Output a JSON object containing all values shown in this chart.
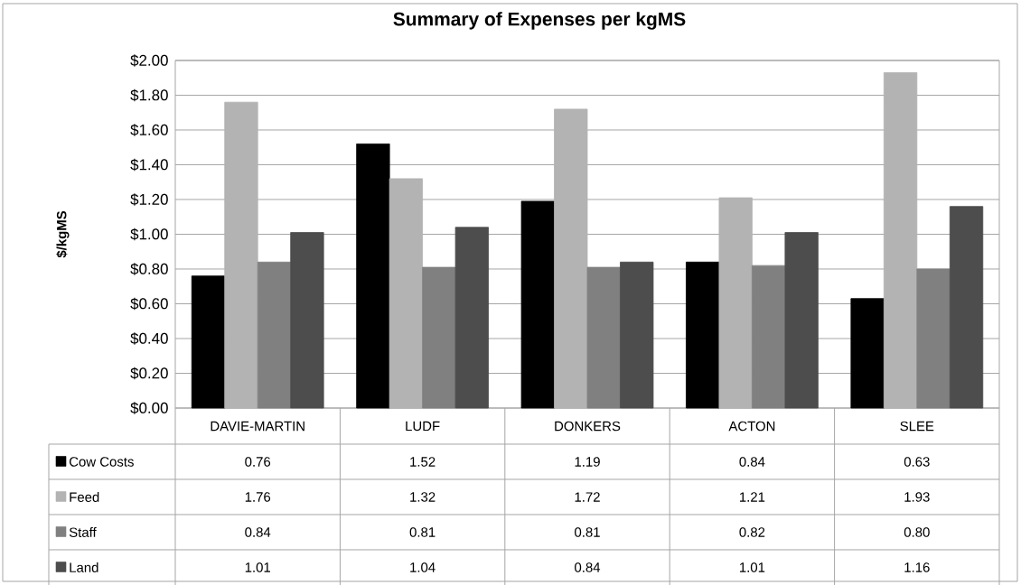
{
  "chart_data": {
    "type": "bar",
    "title": "Summary of Expenses per kgMS",
    "ylabel": "$/kgMS",
    "categories": [
      "DAVIE-MARTIN",
      "LUDF",
      "DONKERS",
      "ACTON",
      "SLEE"
    ],
    "series": [
      {
        "name": "Cow Costs",
        "color": "#000000",
        "values": [
          0.76,
          1.52,
          1.19,
          0.84,
          0.63
        ],
        "value_labels": [
          "0.76",
          "1.52",
          "1.19",
          "0.84",
          "0.63"
        ]
      },
      {
        "name": "Feed",
        "color": "#b3b3b3",
        "values": [
          1.76,
          1.32,
          1.72,
          1.21,
          1.93
        ],
        "value_labels": [
          "1.76",
          "1.32",
          "1.72",
          "1.21",
          "1.93"
        ]
      },
      {
        "name": "Staff",
        "color": "#808080",
        "values": [
          0.84,
          0.81,
          0.81,
          0.82,
          0.8
        ],
        "value_labels": [
          "0.84",
          "0.81",
          "0.81",
          "0.82",
          "0.80"
        ]
      },
      {
        "name": "Land",
        "color": "#4d4d4d",
        "values": [
          1.01,
          1.04,
          0.84,
          1.01,
          1.16
        ],
        "value_labels": [
          "1.01",
          "1.04",
          "0.84",
          "1.01",
          "1.16"
        ]
      }
    ],
    "ylim": [
      0,
      2
    ],
    "yticks": [
      {
        "value": 0,
        "label": "$0.00"
      },
      {
        "value": 0.2,
        "label": "$0.20"
      },
      {
        "value": 0.4,
        "label": "$0.40"
      },
      {
        "value": 0.6,
        "label": "$0.60"
      },
      {
        "value": 0.8,
        "label": "$0.80"
      },
      {
        "value": 1.0,
        "label": "$1.00"
      },
      {
        "value": 1.2,
        "label": "$1.20"
      },
      {
        "value": 1.4,
        "label": "$1.40"
      },
      {
        "value": 1.6,
        "label": "$1.60"
      },
      {
        "value": 1.8,
        "label": "$1.80"
      },
      {
        "value": 2.0,
        "label": "$2.00"
      }
    ],
    "grid": "y",
    "legend": "bottom"
  }
}
